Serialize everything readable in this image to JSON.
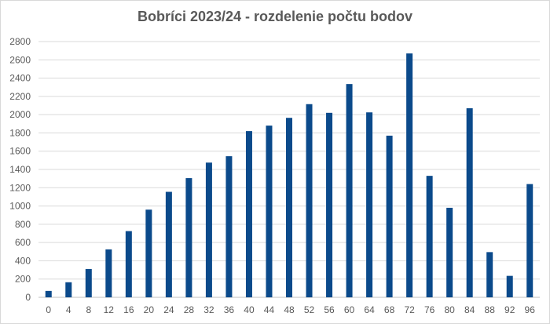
{
  "chart_data": {
    "type": "bar",
    "title": "Bobríci 2023/24 - rozdelenie počtu bodov",
    "xlabel": "",
    "ylabel": "",
    "ylim": [
      0,
      2800
    ],
    "yticks": [
      0,
      200,
      400,
      600,
      800,
      1000,
      1200,
      1400,
      1600,
      1800,
      2000,
      2200,
      2400,
      2600,
      2800
    ],
    "grid": true,
    "legend": "none",
    "bar_color": "#0b4a8b",
    "categories": [
      "0",
      "4",
      "8",
      "12",
      "16",
      "20",
      "24",
      "28",
      "32",
      "36",
      "40",
      "44",
      "48",
      "52",
      "56",
      "60",
      "64",
      "68",
      "72",
      "76",
      "80",
      "84",
      "88",
      "92",
      "96"
    ],
    "values": [
      70,
      165,
      310,
      525,
      725,
      960,
      1155,
      1305,
      1475,
      1545,
      1820,
      1880,
      1965,
      2115,
      2020,
      2335,
      2025,
      1770,
      2670,
      1330,
      980,
      2070,
      495,
      235,
      1240
    ]
  }
}
